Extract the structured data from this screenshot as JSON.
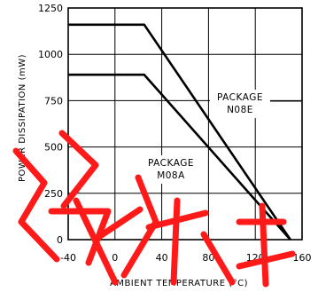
{
  "chart_data": {
    "type": "line",
    "xlabel": "AMBIENT TEMPERATURE (°C)",
    "ylabel": "POWER DISSIPATION (mW)",
    "xlim": [
      -40,
      160
    ],
    "ylim": [
      0,
      1250
    ],
    "x_ticks": [
      "-40",
      "0",
      "40",
      "80",
      "120",
      "160"
    ],
    "y_ticks": [
      "0",
      "250",
      "500",
      "750",
      "1000",
      "1250"
    ],
    "grid": true,
    "series": [
      {
        "name": "PACKAGE N08E",
        "x": [
          -40,
          25,
          150
        ],
        "y": [
          1160,
          1160,
          0
        ]
      },
      {
        "name": "PACKAGE M08A",
        "x": [
          -40,
          25,
          150
        ],
        "y": [
          890,
          890,
          0
        ]
      }
    ],
    "annotations": [
      {
        "lines": [
          "PACKAGE",
          "N08E"
        ],
        "series": "PACKAGE N08E"
      },
      {
        "lines": [
          "PACKAGE",
          "M08A"
        ],
        "series": "PACKAGE M08A"
      }
    ],
    "watermark": "Chinese characters in red (not transcribed)",
    "colors": {
      "line": "#000000",
      "grid": "#000000",
      "watermark": "#ff1a1a"
    }
  }
}
